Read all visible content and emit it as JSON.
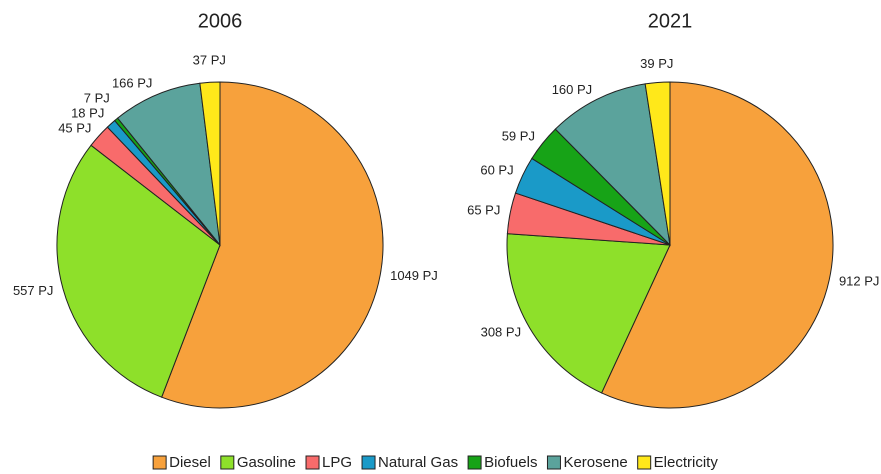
{
  "chart_data": {
    "type": "pie",
    "categories": [
      "Diesel",
      "Gasoline",
      "LPG",
      "Natural Gas",
      "Biofuels",
      "Kerosene",
      "Electricity"
    ],
    "colors": [
      "#f7a13c",
      "#8ee02a",
      "#f86b6b",
      "#1a9ac8",
      "#17a317",
      "#5ba39c",
      "#ffe81a"
    ],
    "series": [
      {
        "name": "2006",
        "values": [
          1049,
          557,
          45,
          18,
          7,
          166,
          37
        ],
        "value_labels": [
          "1049 PJ",
          "557 PJ",
          "45 PJ",
          "18 PJ",
          "7 PJ",
          "166 PJ",
          "37 PJ"
        ]
      },
      {
        "name": "2021",
        "values": [
          912,
          308,
          65,
          60,
          59,
          160,
          39
        ],
        "value_labels": [
          "912 PJ",
          "308 PJ",
          "65 PJ",
          "60 PJ",
          "59 PJ",
          "160 PJ",
          "39 PJ"
        ]
      }
    ]
  }
}
